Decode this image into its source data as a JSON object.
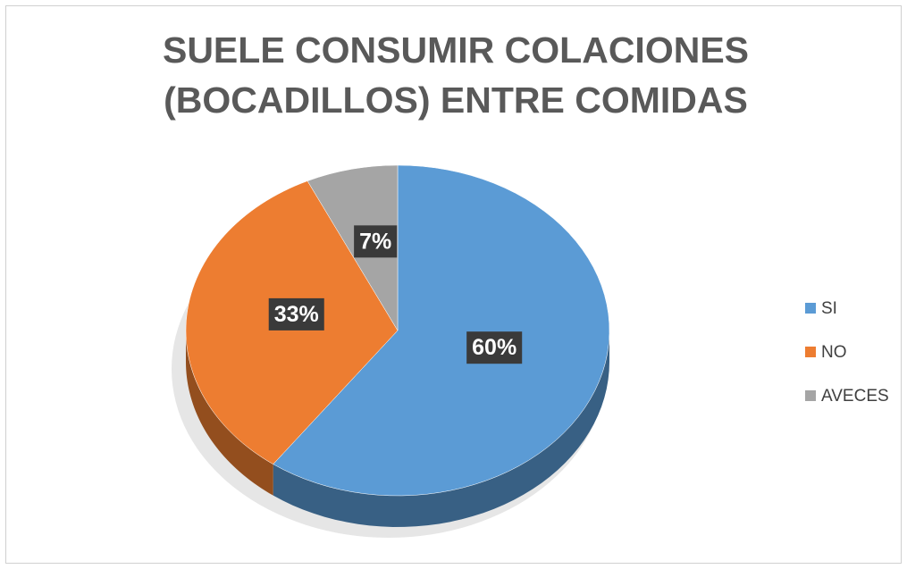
{
  "chart_data": {
    "type": "pie",
    "title": "SUELE CONSUMIR COLACIONES (BOCADILLOS) ENTRE COMIDAS",
    "categories": [
      "SI",
      "NO",
      "AVECES"
    ],
    "values": [
      60,
      33,
      7
    ],
    "value_labels": [
      "60%",
      "33%",
      "7%"
    ],
    "colors": [
      "#5b9bd5",
      "#ed7d31",
      "#a5a5a5"
    ],
    "legend": "right"
  }
}
